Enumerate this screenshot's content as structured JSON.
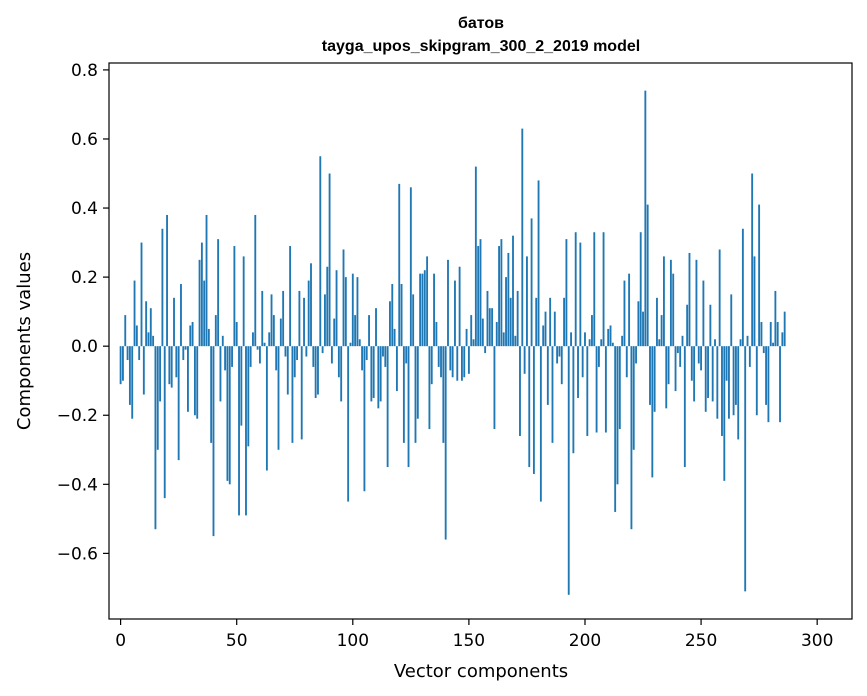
{
  "chart_data": {
    "type": "bar",
    "title": "батов",
    "subtitle": "tayga_upos_skipgram_300_2_2019 model",
    "xlabel": "Vector components",
    "ylabel": "Components values",
    "xlim": [
      -5,
      315
    ],
    "ylim": [
      -0.79,
      0.82
    ],
    "xticks": [
      0,
      50,
      100,
      150,
      200,
      250,
      300
    ],
    "xtick_labels": [
      "0",
      "50",
      "100",
      "150",
      "200",
      "250",
      "300"
    ],
    "yticks": [
      -0.6,
      -0.4,
      -0.2,
      0.0,
      0.2,
      0.4,
      0.6,
      0.8
    ],
    "ytick_labels": [
      "−0.6",
      "−0.4",
      "−0.2",
      "0.0",
      "0.2",
      "0.4",
      "0.6",
      "0.8"
    ],
    "bar_color": "#1f77b4",
    "grid": false,
    "values": [
      -0.11,
      -0.1,
      0.09,
      -0.04,
      -0.17,
      -0.21,
      0.19,
      0.06,
      -0.04,
      0.3,
      -0.14,
      0.13,
      0.04,
      0.11,
      0.03,
      -0.53,
      -0.3,
      -0.16,
      0.34,
      -0.44,
      0.38,
      -0.11,
      -0.12,
      0.14,
      -0.09,
      -0.33,
      0.18,
      -0.04,
      -0.01,
      -0.19,
      0.06,
      0.07,
      -0.2,
      -0.21,
      0.25,
      0.3,
      0.19,
      0.38,
      0.05,
      -0.28,
      -0.55,
      0.09,
      0.31,
      -0.16,
      0.03,
      -0.07,
      -0.39,
      -0.4,
      -0.06,
      0.29,
      0.07,
      -0.49,
      -0.23,
      0.26,
      -0.49,
      -0.29,
      -0.06,
      0.04,
      0.38,
      -0.01,
      -0.05,
      0.16,
      0.01,
      -0.36,
      0.04,
      0.15,
      0.09,
      -0.07,
      -0.3,
      0.08,
      0.16,
      -0.03,
      -0.14,
      0.29,
      -0.28,
      -0.09,
      -0.04,
      0.16,
      -0.27,
      0.14,
      -0.03,
      0.19,
      0.24,
      -0.06,
      -0.15,
      -0.14,
      0.55,
      -0.02,
      0.15,
      0.23,
      0.5,
      -0.05,
      0.08,
      0.22,
      -0.09,
      -0.16,
      0.28,
      0.2,
      -0.45,
      0.01,
      0.21,
      0.09,
      0.2,
      0.02,
      -0.07,
      -0.42,
      -0.04,
      0.09,
      -0.16,
      -0.15,
      0.11,
      -0.18,
      -0.16,
      -0.03,
      -0.06,
      -0.35,
      0.13,
      0.18,
      0.05,
      -0.13,
      0.47,
      0.18,
      -0.28,
      -0.05,
      -0.35,
      0.46,
      0.15,
      -0.28,
      -0.21,
      0.21,
      0.21,
      0.22,
      0.26,
      -0.24,
      -0.11,
      0.21,
      0.07,
      -0.06,
      -0.09,
      -0.28,
      -0.56,
      0.25,
      -0.07,
      -0.09,
      0.19,
      -0.1,
      0.23,
      -0.1,
      -0.09,
      0.05,
      -0.08,
      0.09,
      0.02,
      0.52,
      0.29,
      0.31,
      0.08,
      -0.02,
      0.16,
      0.11,
      0.11,
      -0.24,
      0.07,
      0.29,
      0.31,
      0.04,
      0.2,
      0.27,
      0.14,
      0.32,
      0.03,
      0.16,
      -0.26,
      0.63,
      -0.08,
      0.26,
      -0.35,
      0.37,
      -0.37,
      0.14,
      0.48,
      -0.45,
      0.06,
      0.1,
      -0.17,
      0.14,
      -0.28,
      0.1,
      -0.05,
      -0.03,
      -0.11,
      0.14,
      0.31,
      -0.72,
      0.04,
      -0.31,
      0.33,
      -0.15,
      0.3,
      -0.09,
      0.04,
      -0.26,
      0.02,
      0.09,
      0.33,
      -0.25,
      -0.06,
      0.02,
      0.33,
      -0.25,
      0.05,
      0.06,
      0.01,
      -0.48,
      -0.4,
      -0.24,
      0.03,
      0.19,
      -0.09,
      0.21,
      -0.53,
      -0.3,
      -0.05,
      0.13,
      0.33,
      0.1,
      0.74,
      0.41,
      -0.17,
      -0.38,
      -0.19,
      0.14,
      0.02,
      0.09,
      0.26,
      -0.18,
      -0.11,
      0.25,
      0.21,
      -0.13,
      -0.02,
      -0.06,
      0.03,
      -0.35,
      0.12,
      0.27,
      -0.1,
      -0.16,
      0.25,
      -0.05,
      -0.07,
      0.19,
      -0.19,
      -0.15,
      0.12,
      -0.16,
      0.02,
      -0.21,
      0.28,
      -0.26,
      -0.39,
      -0.1,
      -0.21,
      0.15,
      -0.2,
      -0.17,
      -0.27,
      0.02,
      0.34,
      -0.71,
      0.03,
      -0.06,
      0.5,
      0.26,
      -0.2,
      0.41,
      0.07,
      -0.02,
      -0.17,
      -0.22,
      0.07,
      0.01,
      0.16,
      0.07,
      -0.22,
      0.04,
      0.1
    ]
  }
}
